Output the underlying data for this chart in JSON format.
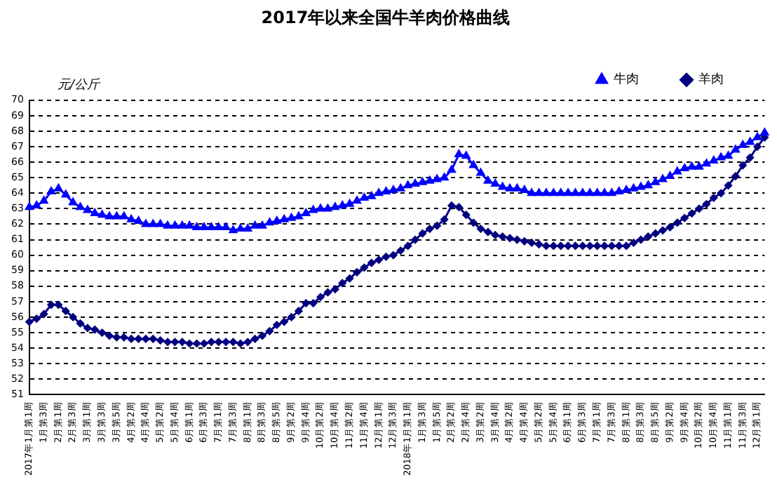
{
  "chart_data": {
    "type": "line",
    "title": "2017年以来全国牛羊肉价格曲线",
    "ylabel": "元/公斤",
    "categories": [
      "2017年1月第1周",
      null,
      "1月第3周",
      null,
      "2月第1周",
      null,
      "2月第3周",
      null,
      "3月第1周",
      null,
      "3月第3周",
      null,
      "3月第5周",
      null,
      "4月第2周",
      null,
      "4月第4周",
      null,
      "5月第2周",
      null,
      "5月第4周",
      null,
      "6月第1周",
      null,
      "6月第3周",
      null,
      "7月第1周",
      null,
      "7月第3周",
      null,
      "8月第1周",
      null,
      "8月第3周",
      null,
      "8月第5周",
      null,
      "9月第2周",
      null,
      "9月第4周",
      null,
      "10月第2周",
      null,
      "10月第4周",
      null,
      "11月第2周",
      null,
      "11月第4周",
      null,
      "12月第1周",
      null,
      "12月第3周",
      null,
      "2018年1月第1周",
      null,
      "1月第3周",
      null,
      "1月第5周",
      null,
      "2月第2周",
      null,
      "2月第4周",
      null,
      "3月第2周",
      null,
      "3月第4周",
      null,
      "4月第2周",
      null,
      "4月第4周",
      null,
      "5月第2周",
      null,
      "5月第4周",
      null,
      "6月第1周",
      null,
      "6月第3周",
      null,
      "7月第1周",
      null,
      "7月第3周",
      null,
      "8月第1周",
      null,
      "8月第3周",
      null,
      "8月第5周",
      null,
      "9月第2周",
      null,
      "9月第4周",
      null,
      "10月第2周",
      null,
      "10月第4周",
      null,
      "11月第1周",
      null,
      "11月第3周",
      null,
      "12月第1周",
      null
    ],
    "series": [
      {
        "name": "牛肉",
        "color": "#0000ff",
        "marker": "triangle",
        "values": [
          63.1,
          63.2,
          63.5,
          64.1,
          64.3,
          63.9,
          63.4,
          63.1,
          62.9,
          62.7,
          62.6,
          62.5,
          62.5,
          62.5,
          62.3,
          62.2,
          62.0,
          62.0,
          62.0,
          61.9,
          61.9,
          61.9,
          61.9,
          61.8,
          61.8,
          61.8,
          61.8,
          61.8,
          61.6,
          61.7,
          61.7,
          61.9,
          61.9,
          62.1,
          62.2,
          62.3,
          62.4,
          62.5,
          62.7,
          62.9,
          63.0,
          63.0,
          63.1,
          63.2,
          63.3,
          63.5,
          63.7,
          63.8,
          64.0,
          64.1,
          64.2,
          64.3,
          64.5,
          64.6,
          64.7,
          64.8,
          64.9,
          65.0,
          65.5,
          66.5,
          66.4,
          65.8,
          65.3,
          64.8,
          64.6,
          64.4,
          64.3,
          64.3,
          64.2,
          64.0,
          64.0,
          64.0,
          64.0,
          64.0,
          64.0,
          64.0,
          64.0,
          64.0,
          64.0,
          64.0,
          64.0,
          64.1,
          64.2,
          64.3,
          64.4,
          64.5,
          64.7,
          64.9,
          65.1,
          65.4,
          65.6,
          65.7,
          65.7,
          65.9,
          66.1,
          66.3,
          66.4,
          66.8,
          67.1,
          67.3,
          67.6,
          67.9
        ]
      },
      {
        "name": "羊肉",
        "color": "#000080",
        "marker": "diamond",
        "values": [
          55.7,
          55.9,
          56.2,
          56.8,
          56.8,
          56.4,
          56.0,
          55.6,
          55.3,
          55.2,
          55.0,
          54.8,
          54.7,
          54.7,
          54.6,
          54.6,
          54.6,
          54.6,
          54.5,
          54.4,
          54.4,
          54.4,
          54.3,
          54.3,
          54.3,
          54.4,
          54.4,
          54.4,
          54.4,
          54.3,
          54.4,
          54.6,
          54.8,
          55.1,
          55.5,
          55.7,
          56.0,
          56.4,
          56.9,
          56.9,
          57.3,
          57.6,
          57.8,
          58.2,
          58.5,
          58.9,
          59.2,
          59.5,
          59.7,
          59.9,
          60.0,
          60.3,
          60.6,
          61.0,
          61.4,
          61.7,
          61.9,
          62.3,
          63.2,
          63.1,
          62.6,
          62.1,
          61.7,
          61.5,
          61.3,
          61.2,
          61.1,
          61.0,
          60.9,
          60.8,
          60.7,
          60.6,
          60.6,
          60.6,
          60.6,
          60.6,
          60.6,
          60.6,
          60.6,
          60.6,
          60.6,
          60.6,
          60.6,
          60.8,
          61.0,
          61.2,
          61.4,
          61.6,
          61.8,
          62.1,
          62.4,
          62.7,
          63.0,
          63.3,
          63.7,
          64.0,
          64.5,
          65.1,
          65.8,
          66.3,
          67.0,
          67.6
        ]
      }
    ],
    "ylim": [
      51,
      70
    ],
    "yticks": [
      51,
      52,
      53,
      54,
      55,
      56,
      57,
      58,
      59,
      60,
      61,
      62,
      63,
      64,
      65,
      66,
      67,
      68,
      69,
      70
    ],
    "grid": "y",
    "legend": "top right"
  }
}
